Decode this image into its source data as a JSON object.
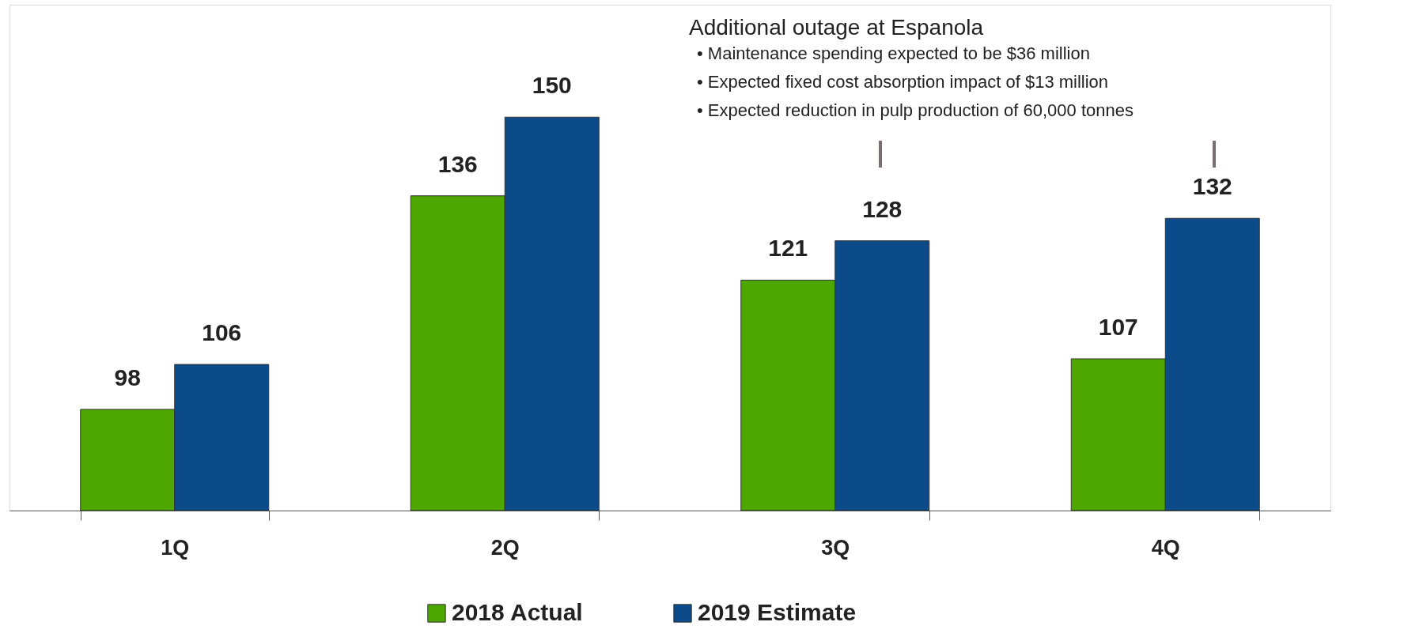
{
  "chart_data": {
    "type": "bar",
    "categories": [
      "1Q",
      "2Q",
      "3Q",
      "4Q"
    ],
    "series": [
      {
        "name": "2018 Actual",
        "color": "#4ea600",
        "values": [
          98,
          136,
          121,
          107
        ]
      },
      {
        "name": "2019 Estimate",
        "color": "#0c4b8a",
        "values": [
          106,
          150,
          128,
          132
        ]
      }
    ],
    "ylim": [
      80,
      170
    ],
    "tick_labels": "x",
    "data_labels": true,
    "legend": "bottom",
    "grid": false,
    "annotations": [
      "Additional outage at Espanola",
      "• Maintenance spending expected to be $36 million",
      "• Expected fixed cost absorption impact of $13 million",
      "• Expected reduction in pulp production of 60,000 tonnes"
    ]
  }
}
